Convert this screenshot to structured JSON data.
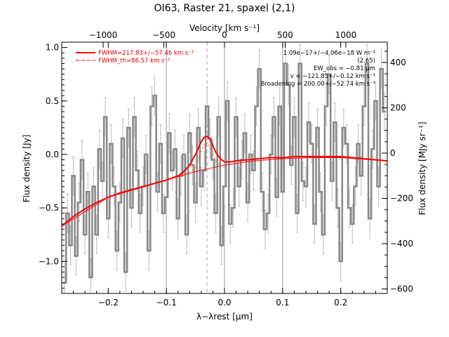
{
  "chart_data": {
    "type": "line",
    "title": "OI63, Raster 21, spaxel (2,1)",
    "xlabel": "λ−λrest [μm]",
    "ylabel_left": "Flux density [Jy]",
    "ylabel_right": "Flux density [MJy sr⁻¹]",
    "xlabel_top": "Velocity [km s⁻¹]",
    "xlim": [
      -0.28,
      0.28
    ],
    "ylim": [
      -1.3,
      1.05
    ],
    "y2lim": [
      -620,
      490
    ],
    "x_ticks": [
      -0.2,
      -0.1,
      0.0,
      0.1,
      0.2
    ],
    "x_tick_labels": [
      "−0.2",
      "−0.1",
      "0.0",
      "0.1",
      "0.2"
    ],
    "y_ticks": [
      -1.0,
      -0.5,
      0.0,
      0.5,
      1.0
    ],
    "y_tick_labels": [
      "−1.0",
      "−0.5",
      "0.0",
      "0.5",
      "1.0"
    ],
    "y2_ticks": [
      -600,
      -400,
      -200,
      0,
      200,
      400
    ],
    "y2_tick_labels": [
      "−600",
      "−400",
      "−200",
      "0",
      "200",
      "400"
    ],
    "top_ticks": [
      -1000,
      -500,
      0,
      500,
      1000
    ],
    "top_tick_labels": [
      "−1000",
      "−500",
      "0",
      "500",
      "1000"
    ],
    "velocity_per_micron": 4790,
    "vertical_lines_x": [
      -0.1,
      0.1
    ],
    "dashed_line_x": -0.03,
    "center_line_x": 0.0,
    "legend": [
      {
        "label": "FWHM=217.83+/−57.46 km s⁻¹",
        "style": "solid",
        "color": "#ff0000"
      },
      {
        "label": "FWHM_th=86.57 km s⁻¹",
        "style": "dashed",
        "color": "#ff0000"
      }
    ],
    "annotations": [
      "1.09e−17+/−4.06e−18 W m⁻²",
      "(2.65)",
      "EW_obs = −0.81 μm",
      "v = −121.85+/−0.12 km s⁻¹",
      "Broadening = 200.00+/−52.74 km s⁻¹"
    ],
    "series": [
      {
        "style": "steps",
        "color": "#888888",
        "x": [
          -0.275,
          -0.27,
          -0.265,
          -0.26,
          -0.255,
          -0.25,
          -0.245,
          -0.24,
          -0.235,
          -0.23,
          -0.225,
          -0.22,
          -0.215,
          -0.21,
          -0.205,
          -0.2,
          -0.195,
          -0.19,
          -0.185,
          -0.18,
          -0.175,
          -0.17,
          -0.165,
          -0.16,
          -0.155,
          -0.15,
          -0.145,
          -0.14,
          -0.135,
          -0.13,
          -0.125,
          -0.12,
          -0.115,
          -0.11,
          -0.105,
          -0.1,
          -0.095,
          -0.09,
          -0.085,
          -0.08,
          -0.075,
          -0.07,
          -0.065,
          -0.06,
          -0.055,
          -0.05,
          -0.045,
          -0.04,
          -0.035,
          -0.03,
          -0.025,
          -0.02,
          -0.015,
          -0.01,
          -0.005,
          0.0,
          0.005,
          0.01,
          0.015,
          0.02,
          0.025,
          0.03,
          0.035,
          0.04,
          0.045,
          0.05,
          0.055,
          0.06,
          0.065,
          0.07,
          0.075,
          0.08,
          0.085,
          0.09,
          0.095,
          0.1,
          0.105,
          0.11,
          0.115,
          0.12,
          0.125,
          0.13,
          0.135,
          0.14,
          0.145,
          0.15,
          0.155,
          0.16,
          0.165,
          0.17,
          0.175,
          0.18,
          0.185,
          0.19,
          0.195,
          0.2,
          0.205,
          0.21,
          0.215,
          0.22,
          0.225,
          0.23,
          0.235,
          0.24,
          0.245,
          0.25,
          0.255,
          0.26,
          0.265,
          0.27,
          0.275
        ],
        "y": [
          -1.2,
          -0.55,
          -0.85,
          -0.2,
          -0.95,
          -0.45,
          -0.05,
          -0.75,
          -0.35,
          -1.15,
          -0.3,
          -0.75,
          0.05,
          -0.25,
          0.35,
          -0.6,
          0.1,
          -0.3,
          -0.9,
          -0.45,
          0.15,
          -1.1,
          0.25,
          -0.5,
          0.35,
          -0.15,
          -0.55,
          -0.3,
          0.0,
          -0.9,
          0.45,
          0.55,
          -0.35,
          0.1,
          -0.55,
          -0.4,
          0.2,
          -0.15,
          0.05,
          -0.6,
          -0.2,
          0.0,
          -0.75,
          0.2,
          -0.1,
          -0.45,
          0.25,
          -0.3,
          -0.15,
          0.45,
          0.15,
          -0.05,
          -0.55,
          0.35,
          -0.85,
          -0.3,
          0.5,
          -0.65,
          -0.5,
          0.35,
          -0.3,
          -0.05,
          0.2,
          -0.45,
          0.0,
          -0.15,
          0.45,
          0.8,
          -0.35,
          -0.7,
          -0.55,
          0.0,
          0.35,
          -0.4,
          0.45,
          -0.35,
          0.85,
          0.65,
          -0.1,
          0.35,
          -0.55,
          0.85,
          -0.25,
          -0.3,
          0.3,
          0.1,
          -0.65,
          0.25,
          -0.35,
          -0.75,
          0.45,
          0.75,
          -0.25,
          0.3,
          -0.5,
          -1.0,
          0.25,
          0.1,
          -0.5,
          -0.65,
          -0.3,
          0.1,
          -0.2,
          0.45,
          0.85,
          -0.6,
          0.05,
          0.5,
          -0.3,
          0.8,
          0.4
        ],
        "error": 0.18
      },
      {
        "style": "line",
        "color": "#ff0000",
        "x": [
          -0.28,
          -0.26,
          -0.24,
          -0.22,
          -0.2,
          -0.18,
          -0.16,
          -0.14,
          -0.12,
          -0.1,
          -0.09,
          -0.08,
          -0.07,
          -0.06,
          -0.05,
          -0.045,
          -0.04,
          -0.035,
          -0.03,
          -0.025,
          -0.02,
          -0.015,
          -0.01,
          -0.005,
          0.0,
          0.01,
          0.02,
          0.04,
          0.06,
          0.08,
          0.1,
          0.12,
          0.14,
          0.16,
          0.18,
          0.2,
          0.22,
          0.24,
          0.26,
          0.28
        ],
        "y": [
          -0.67,
          -0.58,
          -0.51,
          -0.45,
          -0.4,
          -0.36,
          -0.33,
          -0.3,
          -0.27,
          -0.24,
          -0.22,
          -0.2,
          -0.16,
          -0.1,
          0.0,
          0.06,
          0.12,
          0.16,
          0.17,
          0.14,
          0.08,
          0.02,
          -0.02,
          -0.05,
          -0.07,
          -0.07,
          -0.06,
          -0.05,
          -0.04,
          -0.03,
          -0.03,
          -0.02,
          -0.02,
          -0.02,
          -0.02,
          -0.02,
          -0.03,
          -0.04,
          -0.05,
          -0.06
        ]
      },
      {
        "style": "line",
        "color": "#ff0000",
        "x": [
          -0.28,
          -0.2,
          -0.1,
          -0.05,
          0.0,
          0.05,
          0.1,
          0.15,
          0.2,
          0.28
        ],
        "y": [
          -0.67,
          -0.4,
          -0.24,
          -0.16,
          -0.1,
          -0.06,
          -0.04,
          -0.03,
          -0.03,
          -0.06
        ]
      },
      {
        "style": "dashed",
        "color": "#ff6600",
        "x": [
          -0.06,
          -0.05,
          -0.045,
          -0.04,
          -0.035,
          -0.03,
          -0.025,
          -0.02,
          -0.015,
          -0.01,
          -0.005
        ],
        "y": [
          -0.18,
          -0.12,
          -0.05,
          0.03,
          0.09,
          0.11,
          0.06,
          0.0,
          -0.06,
          -0.1,
          -0.11
        ]
      }
    ]
  }
}
